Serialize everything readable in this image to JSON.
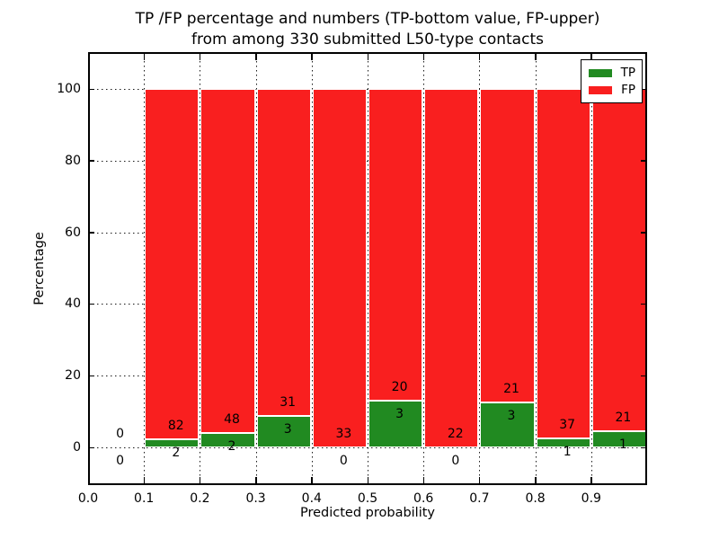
{
  "title": {
    "line1": "TP /FP percentage and numbers (TP-bottom value, FP-upper)",
    "line2": "from among 330 submitted L50-type contacts"
  },
  "axes": {
    "xlabel": "Predicted probability",
    "ylabel": "Percentage",
    "xtick_labels": [
      "0.0",
      "0.1",
      "0.2",
      "0.3",
      "0.4",
      "0.5",
      "0.6",
      "0.7",
      "0.8",
      "0.9"
    ],
    "ytick_labels": [
      "0",
      "20",
      "40",
      "60",
      "80",
      "100"
    ]
  },
  "legend": {
    "items": [
      {
        "label": "TP",
        "color": "#218a21"
      },
      {
        "label": "FP",
        "color": "#f91f1f"
      }
    ]
  },
  "colors": {
    "tp_green": "#218a21",
    "fp_red": "#f91f1f",
    "grid": "#1a1a1a",
    "background": "#ffffff"
  },
  "chart_data": {
    "type": "bar",
    "stacked": true,
    "title": "TP /FP percentage and numbers (TP-bottom value, FP-upper)\nfrom among 330 submitted L50-type contacts",
    "xlabel": "Predicted probability",
    "ylabel": "Percentage",
    "total_contacts": 330,
    "xlim": [
      0.0,
      1.0
    ],
    "ylim": [
      -11,
      110.5
    ],
    "xticks": [
      0.0,
      0.1,
      0.2,
      0.3,
      0.4,
      0.5,
      0.6,
      0.7,
      0.8,
      0.9
    ],
    "yticks": [
      0,
      20,
      40,
      60,
      80,
      100
    ],
    "grid": "dotted",
    "legend_position": "upper right",
    "series": [
      {
        "name": "TP",
        "color": "#218a21"
      },
      {
        "name": "FP",
        "color": "#f91f1f"
      }
    ],
    "bins": [
      {
        "x_start": 0.0,
        "x_end": 0.1,
        "tp_count": 0,
        "fp_count": 0,
        "tp_pct": 0.0,
        "fp_pct": 0.0,
        "has_bar": false
      },
      {
        "x_start": 0.1,
        "x_end": 0.2,
        "tp_count": 2,
        "fp_count": 82,
        "tp_pct": 2.38,
        "fp_pct": 97.62,
        "has_bar": true
      },
      {
        "x_start": 0.2,
        "x_end": 0.3,
        "tp_count": 2,
        "fp_count": 48,
        "tp_pct": 4.0,
        "fp_pct": 96.0,
        "has_bar": true
      },
      {
        "x_start": 0.3,
        "x_end": 0.4,
        "tp_count": 3,
        "fp_count": 31,
        "tp_pct": 8.82,
        "fp_pct": 91.18,
        "has_bar": true
      },
      {
        "x_start": 0.4,
        "x_end": 0.5,
        "tp_count": 0,
        "fp_count": 33,
        "tp_pct": 0.0,
        "fp_pct": 100.0,
        "has_bar": true
      },
      {
        "x_start": 0.5,
        "x_end": 0.6,
        "tp_count": 3,
        "fp_count": 20,
        "tp_pct": 13.04,
        "fp_pct": 86.96,
        "has_bar": true
      },
      {
        "x_start": 0.6,
        "x_end": 0.7,
        "tp_count": 0,
        "fp_count": 22,
        "tp_pct": 0.0,
        "fp_pct": 100.0,
        "has_bar": true
      },
      {
        "x_start": 0.7,
        "x_end": 0.8,
        "tp_count": 3,
        "fp_count": 21,
        "tp_pct": 12.5,
        "fp_pct": 87.5,
        "has_bar": true
      },
      {
        "x_start": 0.8,
        "x_end": 0.9,
        "tp_count": 1,
        "fp_count": 37,
        "tp_pct": 2.63,
        "fp_pct": 97.37,
        "has_bar": true
      },
      {
        "x_start": 0.9,
        "x_end": 1.0,
        "tp_count": 1,
        "fp_count": 21,
        "tp_pct": 4.55,
        "fp_pct": 95.45,
        "has_bar": true
      }
    ]
  }
}
